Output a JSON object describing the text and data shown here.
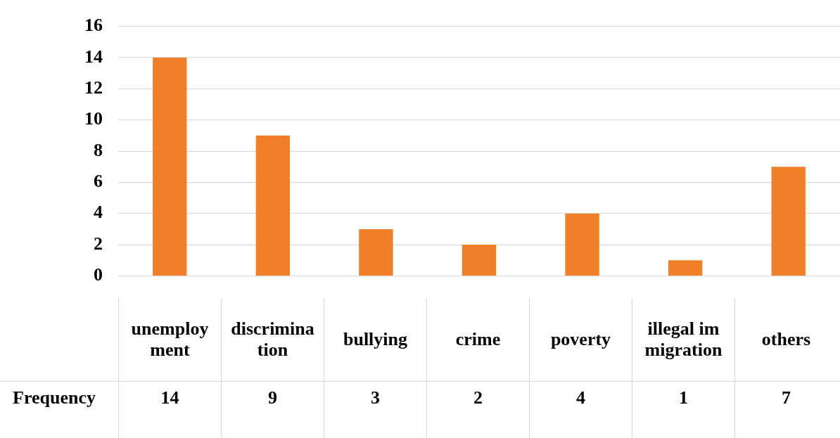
{
  "chart_data": {
    "type": "bar",
    "categories": [
      "unemployment",
      "discrimination",
      "bullying",
      "crime",
      "poverty",
      "illegal immigration",
      "others"
    ],
    "series": [
      {
        "name": "Frequency",
        "color": "#f07f2a",
        "values": [
          14,
          9,
          3,
          2,
          4,
          1,
          7
        ]
      }
    ],
    "ylim": [
      0,
      16
    ],
    "yticks": [
      0,
      2,
      4,
      6,
      8,
      10,
      12,
      14,
      16
    ],
    "grid": "y",
    "legend": false,
    "data_labels": true
  }
}
